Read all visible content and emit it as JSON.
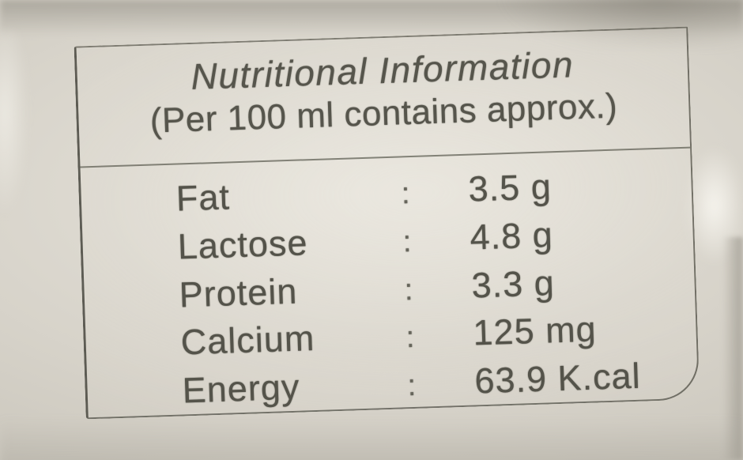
{
  "label": {
    "title": "Nutritional Information",
    "subtitle": "(Per 100 ml contains approx.)",
    "separator": ":",
    "rows": [
      {
        "name": "Fat",
        "value": "3.5 g"
      },
      {
        "name": "Lactose",
        "value": "4.8 g"
      },
      {
        "name": "Protein",
        "value": "3.3 g"
      },
      {
        "name": "Calcium",
        "value": "125 mg"
      },
      {
        "name": "Energy",
        "value": "63.9 K.cal"
      }
    ]
  },
  "colors": {
    "ink": "#56554c",
    "border_line": "#56554b",
    "pouch_background": "#cdc9bf",
    "pouch_highlight": "#e9e6de"
  }
}
